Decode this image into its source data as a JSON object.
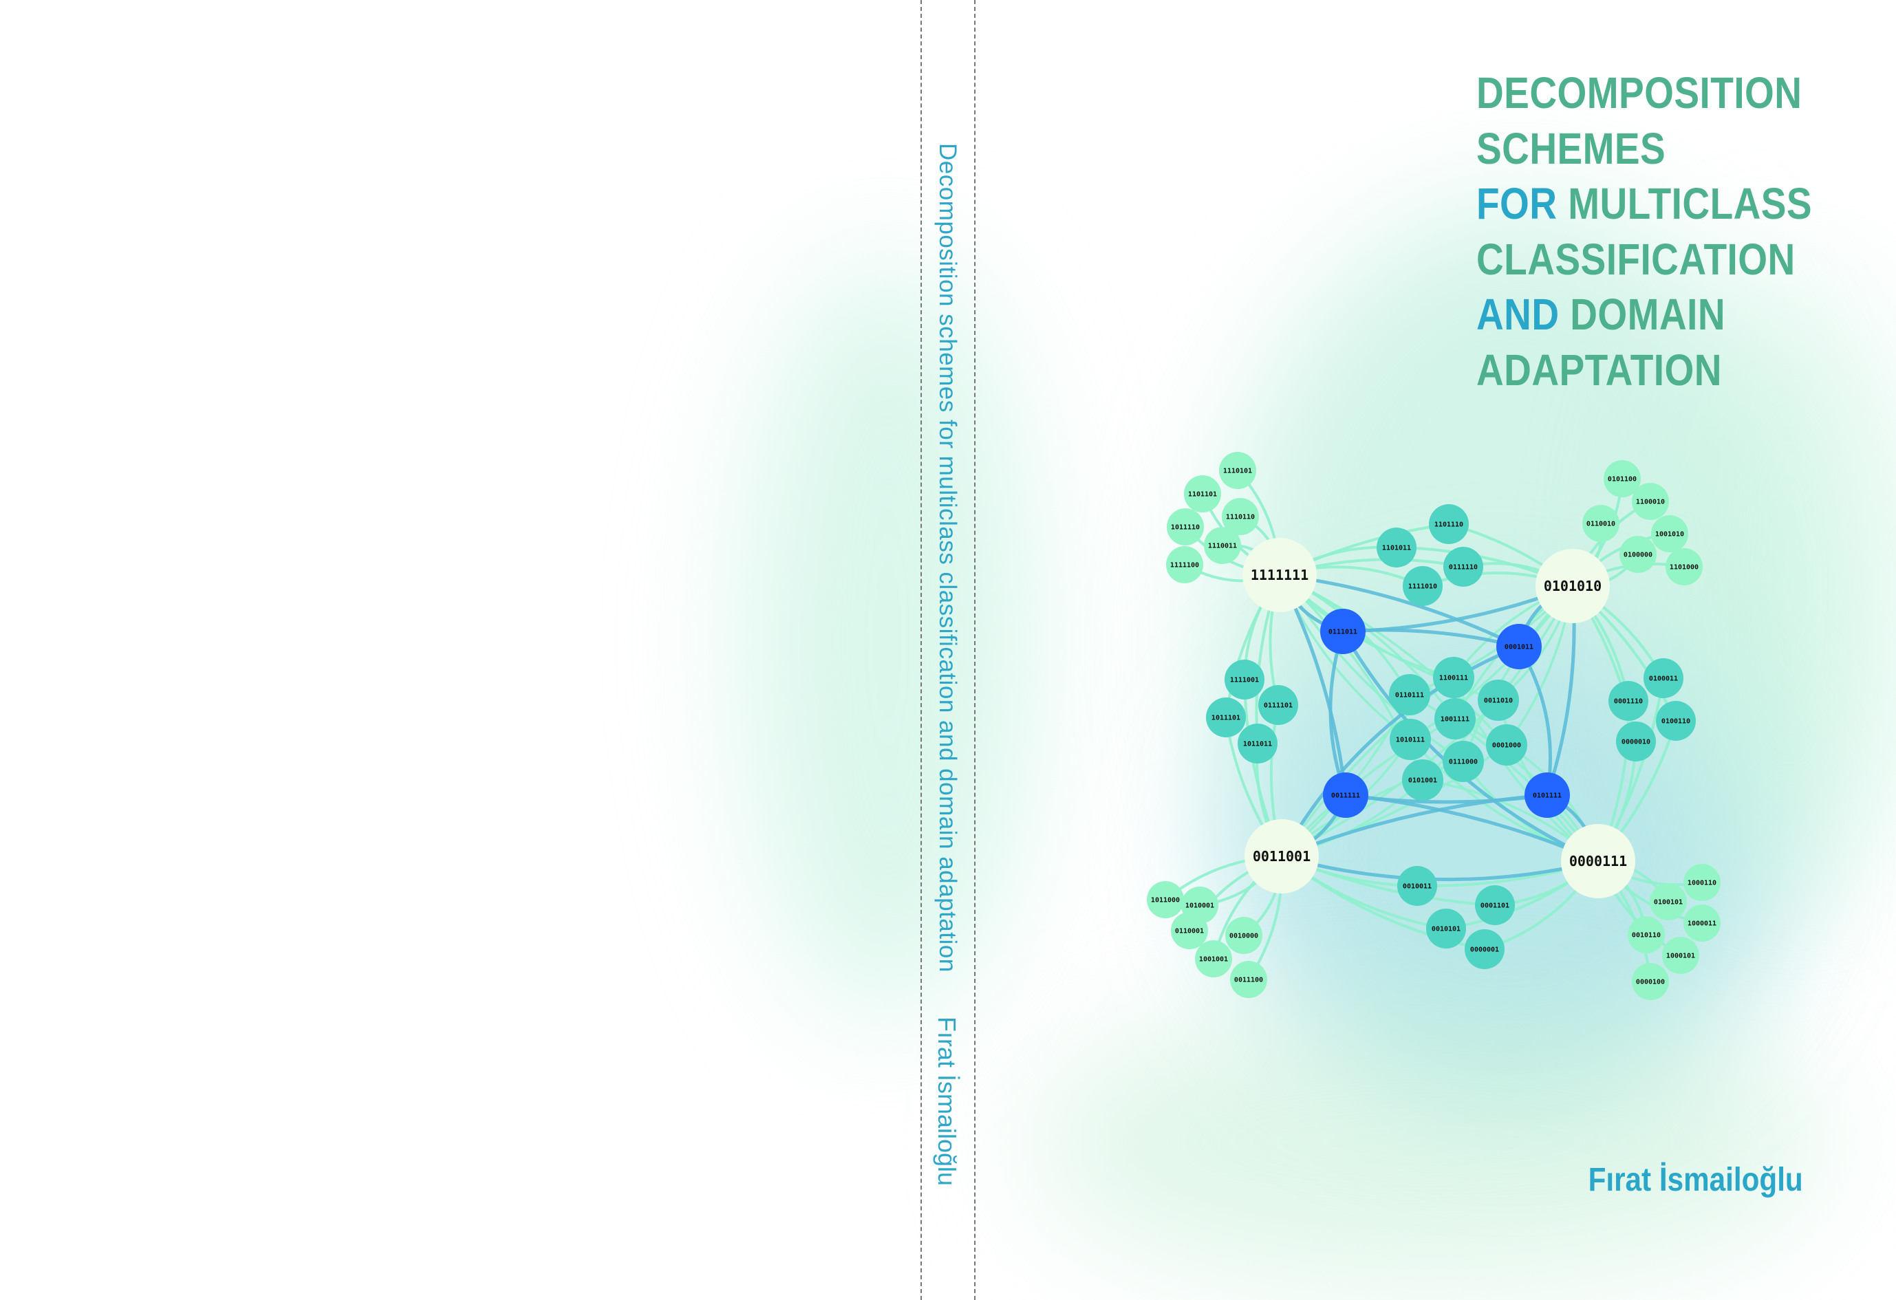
{
  "spine": {
    "title": "Decomposition schemes for multiclass classification and domain adaptation",
    "author": "Fırat İsmailoğlu"
  },
  "front": {
    "title_lines": [
      [
        {
          "text": "DECOMPOSITION",
          "accent": false
        }
      ],
      [
        {
          "text": "SCHEMES",
          "accent": false
        }
      ],
      [
        {
          "text": "FOR",
          "accent": true
        },
        {
          "text": " MULTICLASS",
          "accent": false
        }
      ],
      [
        {
          "text": "CLASSIFICATION",
          "accent": false
        }
      ],
      [
        {
          "text": "AND",
          "accent": true
        },
        {
          "text": " DOMAIN",
          "accent": false
        }
      ],
      [
        {
          "text": "ADAPTATION",
          "accent": false
        }
      ]
    ],
    "author": "Fırat İsmailoğlu"
  },
  "colors": {
    "title_green": "#4fb08e",
    "accent_blue": "#2aa6c9",
    "hub_fill": "#f1fbe9",
    "teal_node": "#4fd3c2",
    "mint_node": "#93f5c6",
    "blue_node": "#2266ff",
    "edge_blue": "#5dbdd8",
    "edge_mint": "#8ef0cc"
  },
  "graph": {
    "hubs": [
      "1111111",
      "0101010",
      "0011001",
      "0000111"
    ],
    "connectors": [
      "0111011",
      "0001011",
      "0011111",
      "0101111"
    ],
    "center_nodes": [
      "1100111",
      "0110111",
      "0011010",
      "1001111",
      "1010111",
      "0001000",
      "0111000",
      "0101001"
    ],
    "top_middle_nodes": [
      "1101110",
      "1101011",
      "0111110",
      "1111010"
    ],
    "left_middle_nodes": [
      "1111001",
      "0111101",
      "1011101",
      "1011011"
    ],
    "right_middle_nodes": [
      "0100011",
      "0001110",
      "0100110",
      "0000010"
    ],
    "bottom_middle_nodes": [
      "0010011",
      "0001101",
      "0010101",
      "0000001"
    ],
    "cluster_top_left": [
      "1110101",
      "1101101",
      "1110110",
      "1011110",
      "1110011",
      "1111100"
    ],
    "cluster_top_right": [
      "0101100",
      "1100010",
      "0110010",
      "1001010",
      "0100000",
      "1101000"
    ],
    "cluster_bottom_left": [
      "1011000",
      "1010001",
      "0110001",
      "0010000",
      "1001001",
      "0011100"
    ],
    "cluster_bottom_right": [
      "1000110",
      "0100101",
      "1000011",
      "0010110",
      "1000101",
      "0000100"
    ]
  }
}
